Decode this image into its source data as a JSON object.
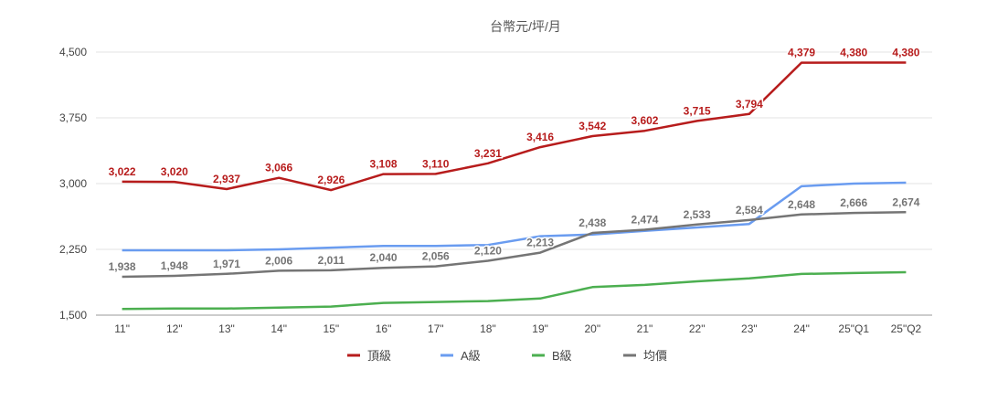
{
  "chart_data": {
    "type": "line",
    "title": "台幣元/坪/月",
    "xlabel": "",
    "ylabel": "",
    "ylim": [
      1500,
      4500
    ],
    "yticks": [
      "1,500",
      "2,250",
      "3,000",
      "3,750",
      "4,500"
    ],
    "ytick_values": [
      1500,
      2250,
      3000,
      3750,
      4500
    ],
    "grid": true,
    "legend_position": "bottom",
    "categories": [
      "11\"",
      "12\"",
      "13\"",
      "14\"",
      "15\"",
      "16\"",
      "17\"",
      "18\"",
      "19\"",
      "20\"",
      "21\"",
      "22\"",
      "23\"",
      "24\"",
      "25\"Q1",
      "25\"Q2"
    ],
    "series": [
      {
        "name": "頂級",
        "color": "#b71c1c",
        "values": [
          3022,
          3020,
          2937,
          3066,
          2926,
          3108,
          3110,
          3231,
          3416,
          3542,
          3602,
          3715,
          3794,
          4379,
          4380,
          4380
        ],
        "labels": [
          "3,022",
          "3,020",
          "2,937",
          "3,066",
          "2,926",
          "3,108",
          "3,110",
          "3,231",
          "3,416",
          "3,542",
          "3,602",
          "3,715",
          "3,794",
          "4,379",
          "4,380",
          "4,380"
        ]
      },
      {
        "name": "A級",
        "color": "#6a9cf0",
        "values": [
          2240,
          2240,
          2240,
          2250,
          2270,
          2290,
          2290,
          2300,
          2400,
          2420,
          2460,
          2500,
          2540,
          2970,
          3000,
          3010
        ],
        "labels": []
      },
      {
        "name": "B級",
        "color": "#4caf50",
        "values": [
          1570,
          1575,
          1575,
          1585,
          1598,
          1640,
          1650,
          1660,
          1690,
          1820,
          1845,
          1885,
          1920,
          1970,
          1980,
          1990
        ],
        "labels": []
      },
      {
        "name": "均價",
        "color": "#757575",
        "values": [
          1938,
          1948,
          1971,
          2006,
          2011,
          2040,
          2056,
          2120,
          2213,
          2438,
          2474,
          2533,
          2584,
          2648,
          2666,
          2674
        ],
        "labels": [
          "1,938",
          "1,948",
          "1,971",
          "2,006",
          "2,011",
          "2,040",
          "2,056",
          "2,120",
          "2,213",
          "2,438",
          "2,474",
          "2,533",
          "2,584",
          "2,648",
          "2,666",
          "2,674"
        ]
      }
    ]
  }
}
